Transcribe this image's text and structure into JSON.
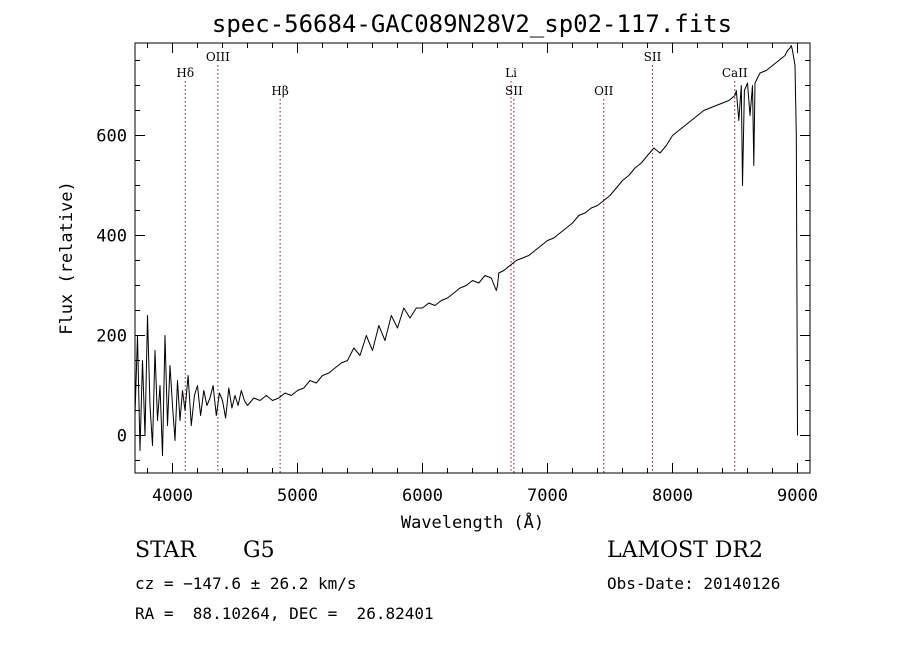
{
  "chart_data": {
    "type": "line",
    "title": "spec-56684-GAC089N28V2_sp02-117.fits",
    "xlabel": "Wavelength (Å)",
    "ylabel": "Flux (relative)",
    "xlim": [
      3700,
      9100
    ],
    "ylim": [
      -75,
      785
    ],
    "x_ticks": [
      4000,
      5000,
      6000,
      7000,
      8000,
      9000
    ],
    "y_ticks": [
      0,
      200,
      400,
      600
    ],
    "grid": false,
    "line_color": "#000000",
    "marker_color": "#a01010",
    "spectral_lines": [
      {
        "label": "Hδ",
        "x": 4102,
        "row": 0
      },
      {
        "label": "OIII",
        "x": 4363,
        "row": -1
      },
      {
        "label": "Hβ",
        "x": 4861,
        "row": 1
      },
      {
        "label": "Li",
        "x": 6708,
        "row": 0
      },
      {
        "label": "SII",
        "x": 6731,
        "row": 1
      },
      {
        "label": "OII",
        "x": 7450,
        "row": 1
      },
      {
        "label": "SII",
        "x": 7840,
        "row": -1
      },
      {
        "label": "CaII",
        "x": 8498,
        "row": 0
      }
    ],
    "series": [
      {
        "x": [
          3700,
          3720,
          3740,
          3760,
          3780,
          3800,
          3820,
          3840,
          3860,
          3880,
          3900,
          3920,
          3940,
          3960,
          3980,
          4000,
          4020,
          4040,
          4060,
          4080,
          4100,
          4125,
          4150,
          4175,
          4200,
          4225,
          4250,
          4275,
          4300,
          4325,
          4350,
          4375,
          4400,
          4425,
          4450,
          4475,
          4500,
          4525,
          4550,
          4575,
          4600,
          4650,
          4700,
          4750,
          4800,
          4850,
          4900,
          4950,
          5000,
          5050,
          5100,
          5150,
          5200,
          5250,
          5300,
          5350,
          5400,
          5450,
          5500,
          5550,
          5600,
          5650,
          5700,
          5750,
          5800,
          5850,
          5900,
          5950,
          6000,
          6050,
          6100,
          6150,
          6200,
          6250,
          6300,
          6350,
          6400,
          6450,
          6500,
          6550,
          6590,
          6600,
          6610,
          6650,
          6700,
          6750,
          6800,
          6850,
          6900,
          6950,
          7000,
          7050,
          7100,
          7150,
          7200,
          7250,
          7300,
          7350,
          7400,
          7450,
          7500,
          7550,
          7600,
          7650,
          7700,
          7750,
          7800,
          7850,
          7900,
          7950,
          8000,
          8050,
          8100,
          8150,
          8200,
          8250,
          8300,
          8350,
          8400,
          8450,
          8500,
          8510,
          8530,
          8550,
          8560,
          8575,
          8600,
          8620,
          8640,
          8650,
          8660,
          8680,
          8700,
          8750,
          8800,
          8850,
          8900,
          8920,
          8940,
          8950,
          8960,
          8980,
          8990,
          9000
        ],
        "y": [
          40,
          200,
          -30,
          150,
          0,
          240,
          60,
          -20,
          170,
          30,
          100,
          -40,
          200,
          20,
          140,
          60,
          -10,
          110,
          30,
          90,
          50,
          120,
          20,
          80,
          100,
          40,
          90,
          60,
          75,
          100,
          40,
          85,
          70,
          35,
          95,
          55,
          80,
          60,
          90,
          70,
          60,
          75,
          70,
          80,
          70,
          75,
          85,
          80,
          90,
          95,
          110,
          105,
          120,
          125,
          135,
          145,
          150,
          175,
          160,
          200,
          170,
          220,
          190,
          240,
          215,
          255,
          235,
          255,
          255,
          265,
          260,
          270,
          275,
          285,
          295,
          300,
          310,
          305,
          320,
          315,
          290,
          300,
          325,
          330,
          340,
          350,
          355,
          360,
          370,
          380,
          390,
          395,
          405,
          415,
          425,
          440,
          445,
          455,
          460,
          470,
          480,
          495,
          510,
          520,
          535,
          545,
          560,
          575,
          565,
          580,
          600,
          610,
          620,
          630,
          640,
          650,
          655,
          660,
          665,
          670,
          680,
          690,
          630,
          700,
          500,
          690,
          705,
          640,
          700,
          540,
          705,
          715,
          725,
          730,
          740,
          750,
          760,
          770,
          775,
          780,
          770,
          740,
          600,
          0
        ]
      }
    ]
  },
  "info": {
    "class": "STAR",
    "subclass": "G5",
    "survey": "LAMOST DR2",
    "cz": "cz = −147.6 ± 26.2 km/s",
    "obs_date": "Obs-Date: 20140126",
    "coords": "RA =  88.10264, DEC =  26.82401"
  }
}
